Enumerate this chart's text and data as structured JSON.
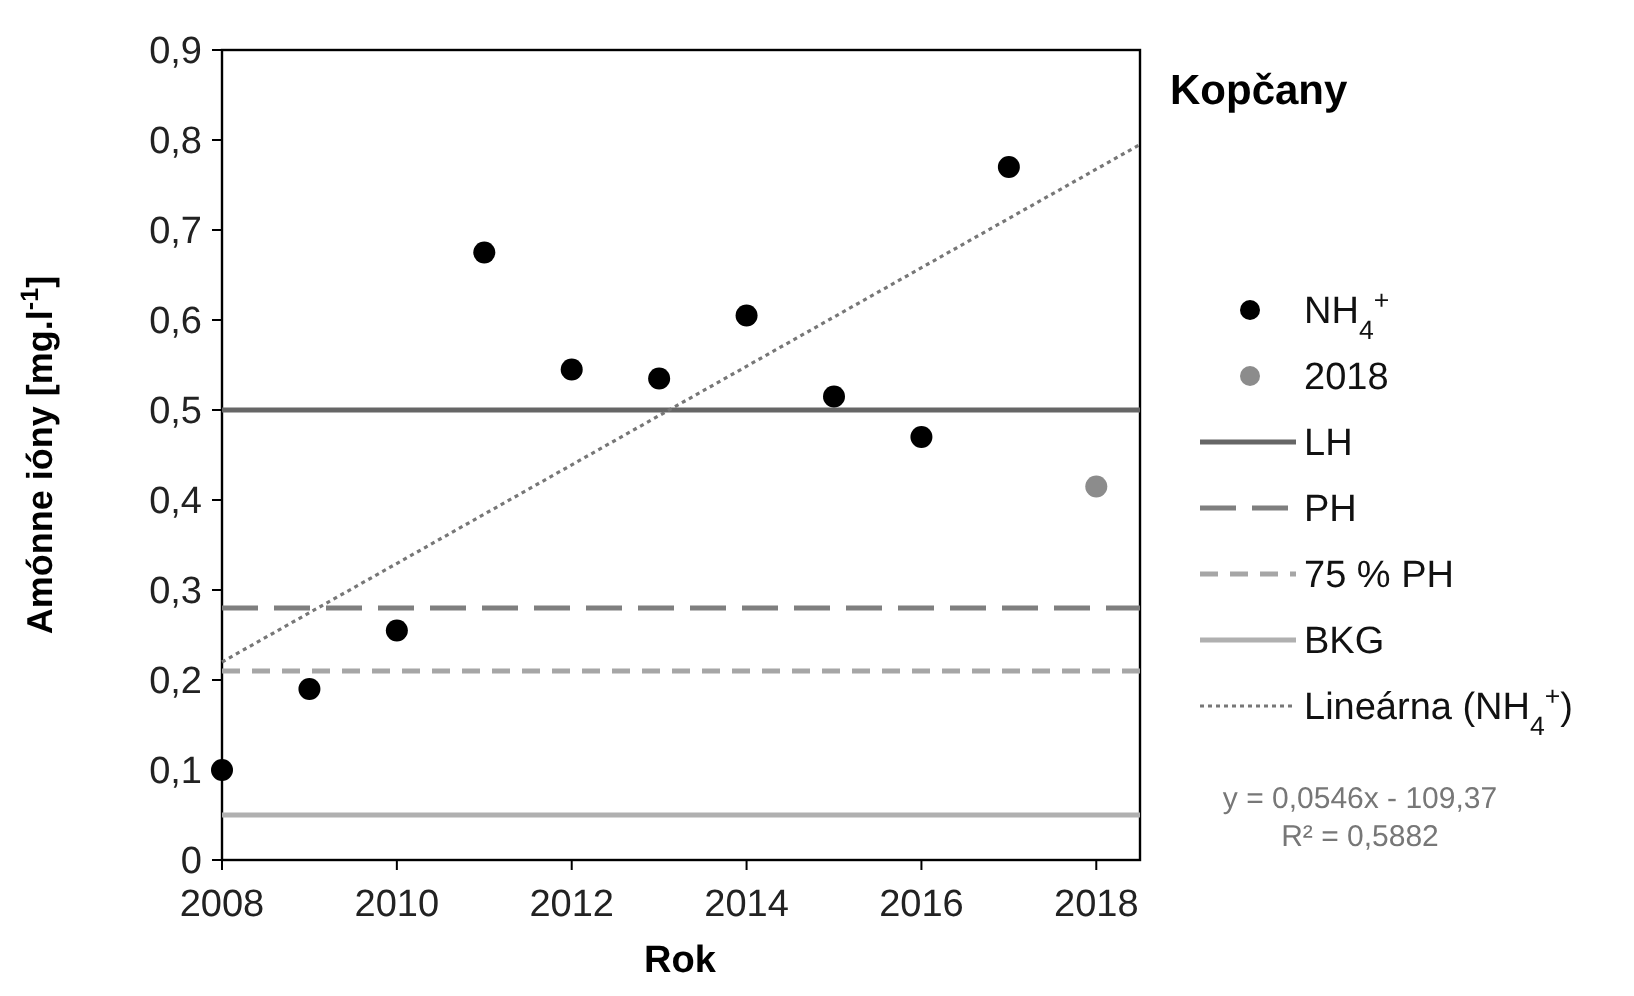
{
  "chart_data": {
    "type": "scatter",
    "title": "Kopčany",
    "xlabel": "Rok",
    "ylabel": "Amónne ióny [mg.l$^{-1}$]",
    "xlim": [
      2008,
      2018.5
    ],
    "xticks": [
      2008,
      2010,
      2012,
      2014,
      2016,
      2018
    ],
    "ylim": [
      0,
      0.9
    ],
    "yticks": [
      0,
      {
        "value": 0.1,
        "label": "0,1"
      },
      {
        "value": 0.2,
        "label": "0,2"
      },
      {
        "value": 0.3,
        "label": "0,3"
      },
      {
        "value": 0.4,
        "label": "0,4"
      },
      {
        "value": 0.5,
        "label": "0,5"
      },
      {
        "value": 0.6,
        "label": "0,6"
      },
      {
        "value": 0.7,
        "label": "0,7"
      },
      {
        "value": 0.8,
        "label": "0,8"
      },
      {
        "value": 0.9,
        "label": "0,9"
      }
    ],
    "grid": false,
    "legend": "right",
    "marker": "circle",
    "series": [
      {
        "name": "NH$_{4}$$^{+}$",
        "color": "#000000",
        "x": [
          2008,
          2009,
          2010,
          2011,
          2012,
          2013,
          2014,
          2015,
          2016,
          2017
        ],
        "values": [
          0.1,
          0.19,
          0.255,
          0.675,
          0.545,
          0.535,
          0.605,
          0.515,
          0.47,
          0.77
        ]
      },
      {
        "name": "2018",
        "color": "#8c8c8c",
        "x": [
          2018
        ],
        "values": [
          0.415
        ]
      },
      {
        "name": "Lineárna (NH$_{4}$$^{+}$)",
        "type": "line",
        "line_style": "dotted",
        "marker": "none",
        "color": "#777777",
        "x": [
          2008,
          2018.5
        ],
        "values": [
          0.22,
          0.795
        ]
      }
    ],
    "ref_lines": [
      {
        "axis": "y",
        "value": 0.5,
        "label": "LH",
        "color": "#666666",
        "line_style": "solid"
      },
      {
        "axis": "y",
        "value": 0.28,
        "label": "PH",
        "color": "#7f7f7f",
        "line_style": "dashed"
      },
      {
        "axis": "y",
        "value": 0.21,
        "label": "75 % PH",
        "color": "#a6a6a6",
        "line_style": "dashed"
      },
      {
        "axis": "y",
        "value": 0.05,
        "label": "BKG",
        "color": "#b0b0b0",
        "line_style": "solid"
      }
    ],
    "annotations": [
      "y = 0,0546x - 109,37",
      "R² = 0,5882"
    ]
  }
}
